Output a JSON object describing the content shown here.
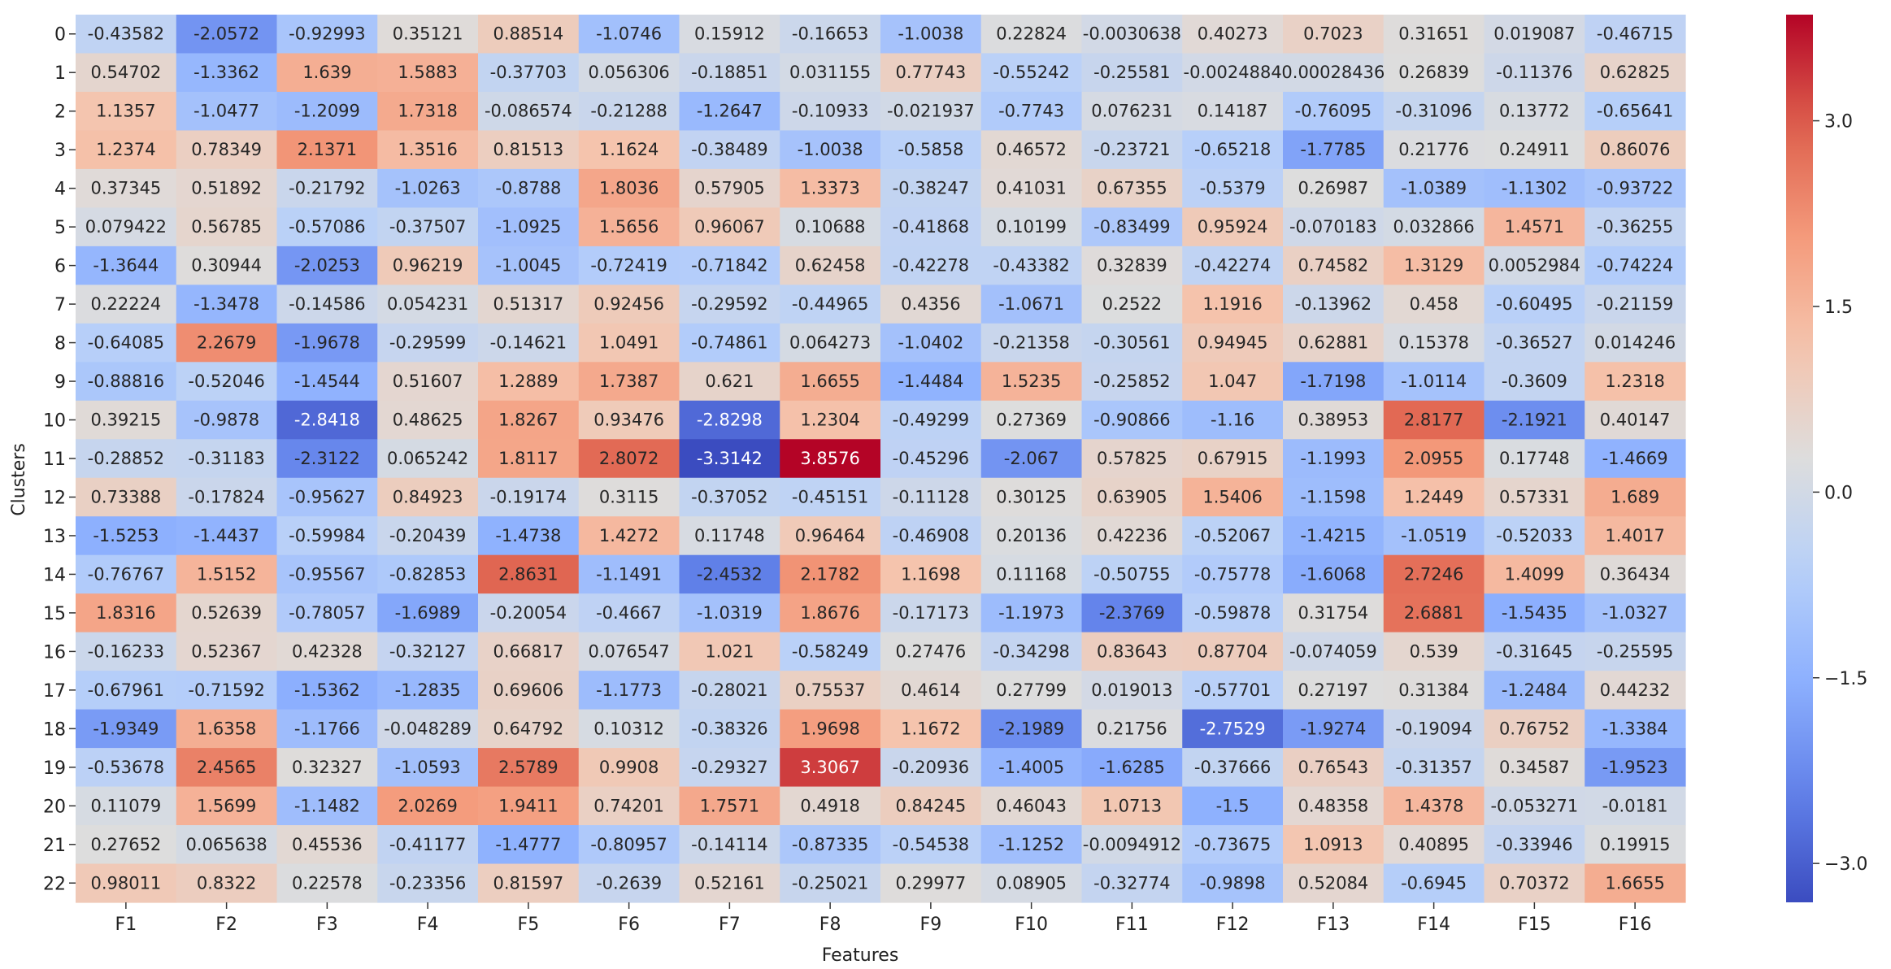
{
  "chart_data": {
    "type": "heatmap",
    "title": "",
    "xlabel": "Features",
    "ylabel": "Clusters",
    "x": [
      "F1",
      "F2",
      "F3",
      "F4",
      "F5",
      "F6",
      "F7",
      "F8",
      "F9",
      "F10",
      "F11",
      "F12",
      "F13",
      "F14",
      "F15",
      "F16"
    ],
    "y": [
      "0",
      "1",
      "2",
      "3",
      "4",
      "5",
      "6",
      "7",
      "8",
      "9",
      "10",
      "11",
      "12",
      "13",
      "14",
      "15",
      "16",
      "17",
      "18",
      "19",
      "20",
      "21",
      "22"
    ],
    "values": [
      [
        "-0.43582",
        "-2.0572",
        "-0.92993",
        "0.35121",
        "0.88514",
        "-1.0746",
        "0.15912",
        "-0.16653",
        "-1.0038",
        "0.22824",
        "-0.0030638",
        "0.40273",
        "0.7023",
        "0.31651",
        "0.019087",
        "-0.46715"
      ],
      [
        "0.54702",
        "-1.3362",
        "1.639",
        "1.5883",
        "-0.37703",
        "0.056306",
        "-0.18851",
        "0.031155",
        "0.77743",
        "-0.55242",
        "-0.25581",
        "-0.0024884",
        "0.00028436",
        "0.26839",
        "-0.11376",
        "0.62825"
      ],
      [
        "1.1357",
        "-1.0477",
        "-1.2099",
        "1.7318",
        "-0.086574",
        "-0.21288",
        "-1.2647",
        "-0.10933",
        "-0.021937",
        "-0.7743",
        "0.076231",
        "0.14187",
        "-0.76095",
        "-0.31096",
        "0.13772",
        "-0.65641"
      ],
      [
        "1.2374",
        "0.78349",
        "2.1371",
        "1.3516",
        "0.81513",
        "1.1624",
        "-0.38489",
        "-1.0038",
        "-0.5858",
        "0.46572",
        "-0.23721",
        "-0.65218",
        "-1.7785",
        "0.21776",
        "0.24911",
        "0.86076"
      ],
      [
        "0.37345",
        "0.51892",
        "-0.21792",
        "-1.0263",
        "-0.8788",
        "1.8036",
        "0.57905",
        "1.3373",
        "-0.38247",
        "0.41031",
        "0.67355",
        "-0.5379",
        "0.26987",
        "-1.0389",
        "-1.1302",
        "-0.93722"
      ],
      [
        "0.079422",
        "0.56785",
        "-0.57086",
        "-0.37507",
        "-1.0925",
        "1.5656",
        "0.96067",
        "0.10688",
        "-0.41868",
        "0.10199",
        "-0.83499",
        "0.95924",
        "-0.070183",
        "0.032866",
        "1.4571",
        "-0.36255"
      ],
      [
        "-1.3644",
        "0.30944",
        "-2.0253",
        "0.96219",
        "-1.0045",
        "-0.72419",
        "-0.71842",
        "0.62458",
        "-0.42278",
        "-0.43382",
        "0.32839",
        "-0.42274",
        "0.74582",
        "1.3129",
        "0.0052984",
        "-0.74224"
      ],
      [
        "0.22224",
        "-1.3478",
        "-0.14586",
        "0.054231",
        "0.51317",
        "0.92456",
        "-0.29592",
        "-0.44965",
        "0.4356",
        "-1.0671",
        "0.2522",
        "1.1916",
        "-0.13962",
        "0.458",
        "-0.60495",
        "-0.21159"
      ],
      [
        "-0.64085",
        "2.2679",
        "-1.9678",
        "-0.29599",
        "-0.14621",
        "1.0491",
        "-0.74861",
        "0.064273",
        "-1.0402",
        "-0.21358",
        "-0.30561",
        "0.94945",
        "0.62881",
        "0.15378",
        "-0.36527",
        "0.014246"
      ],
      [
        "-0.88816",
        "-0.52046",
        "-1.4544",
        "0.51607",
        "1.2889",
        "1.7387",
        "0.621",
        "1.6655",
        "-1.4484",
        "1.5235",
        "-0.25852",
        "1.047",
        "-1.7198",
        "-1.0114",
        "-0.3609",
        "1.2318"
      ],
      [
        "0.39215",
        "-0.9878",
        "-2.8418",
        "0.48625",
        "1.8267",
        "0.93476",
        "-2.8298",
        "1.2304",
        "-0.49299",
        "0.27369",
        "-0.90866",
        "-1.16",
        "0.38953",
        "2.8177",
        "-2.1921",
        "0.40147"
      ],
      [
        "-0.28852",
        "-0.31183",
        "-2.3122",
        "0.065242",
        "1.8117",
        "2.8072",
        "-3.3142",
        "3.8576",
        "-0.45296",
        "-2.067",
        "0.57825",
        "0.67915",
        "-1.1993",
        "2.0955",
        "0.17748",
        "-1.4669"
      ],
      [
        "0.73388",
        "-0.17824",
        "-0.95627",
        "0.84923",
        "-0.19174",
        "0.3115",
        "-0.37052",
        "-0.45151",
        "-0.11128",
        "0.30125",
        "0.63905",
        "1.5406",
        "-1.1598",
        "1.2449",
        "0.57331",
        "1.689"
      ],
      [
        "-1.5253",
        "-1.4437",
        "-0.59984",
        "-0.20439",
        "-1.4738",
        "1.4272",
        "0.11748",
        "0.96464",
        "-0.46908",
        "0.20136",
        "0.42236",
        "-0.52067",
        "-1.4215",
        "-1.0519",
        "-0.52033",
        "1.4017"
      ],
      [
        "-0.76767",
        "1.5152",
        "-0.95567",
        "-0.82853",
        "2.8631",
        "-1.1491",
        "-2.4532",
        "2.1782",
        "1.1698",
        "0.11168",
        "-0.50755",
        "-0.75778",
        "-1.6068",
        "2.7246",
        "1.4099",
        "0.36434"
      ],
      [
        "1.8316",
        "0.52639",
        "-0.78057",
        "-1.6989",
        "-0.20054",
        "-0.4667",
        "-1.0319",
        "1.8676",
        "-0.17173",
        "-1.1973",
        "-2.3769",
        "-0.59878",
        "0.31754",
        "2.6881",
        "-1.5435",
        "-1.0327"
      ],
      [
        "-0.16233",
        "0.52367",
        "0.42328",
        "-0.32127",
        "0.66817",
        "0.076547",
        "1.021",
        "-0.58249",
        "0.27476",
        "-0.34298",
        "0.83643",
        "0.87704",
        "-0.074059",
        "0.539",
        "-0.31645",
        "-0.25595"
      ],
      [
        "-0.67961",
        "-0.71592",
        "-1.5362",
        "-1.2835",
        "0.69606",
        "-1.1773",
        "-0.28021",
        "0.75537",
        "0.4614",
        "0.27799",
        "0.019013",
        "-0.57701",
        "0.27197",
        "0.31384",
        "-1.2484",
        "0.44232"
      ],
      [
        "-1.9349",
        "1.6358",
        "-1.1766",
        "-0.048289",
        "0.64792",
        "0.10312",
        "-0.38326",
        "1.9698",
        "1.1672",
        "-2.1989",
        "0.21756",
        "-2.7529",
        "-1.9274",
        "-0.19094",
        "0.76752",
        "-1.3384"
      ],
      [
        "-0.53678",
        "2.4565",
        "0.32327",
        "-1.0593",
        "2.5789",
        "0.9908",
        "-0.29327",
        "3.3067",
        "-0.20936",
        "-1.4005",
        "-1.6285",
        "-0.37666",
        "0.76543",
        "-0.31357",
        "0.34587",
        "-1.9523"
      ],
      [
        "0.11079",
        "1.5699",
        "-1.1482",
        "2.0269",
        "1.9411",
        "0.74201",
        "1.7571",
        "0.4918",
        "0.84245",
        "0.46043",
        "1.0713",
        "-1.5",
        "0.48358",
        "1.4378",
        "-0.053271",
        "-0.0181"
      ],
      [
        "0.27652",
        "0.065638",
        "0.45536",
        "-0.41177",
        "-1.4777",
        "-0.80957",
        "-0.14114",
        "-0.87335",
        "-0.54538",
        "-1.1252",
        "-0.0094912",
        "-0.73675",
        "1.0913",
        "0.40895",
        "-0.33946",
        "0.19915"
      ],
      [
        "0.98011",
        "0.8322",
        "0.22578",
        "-0.23356",
        "0.81597",
        "-0.2639",
        "0.52161",
        "-0.25021",
        "0.29977",
        "0.08905",
        "-0.32774",
        "-0.9898",
        "0.52084",
        "-0.6945",
        "0.70372",
        "1.6655"
      ]
    ],
    "colormap": "coolwarm",
    "vmin": -3.3142,
    "vmax": 3.8576,
    "colorbar": {
      "ticks": [
        -3.0,
        -1.5,
        0.0,
        1.5,
        3.0
      ],
      "tick_labels": [
        "−3.0",
        "−1.5",
        "0.0",
        "1.5",
        "3.0"
      ]
    },
    "annotated": true,
    "grid": false,
    "legend": "colorbar-right"
  }
}
